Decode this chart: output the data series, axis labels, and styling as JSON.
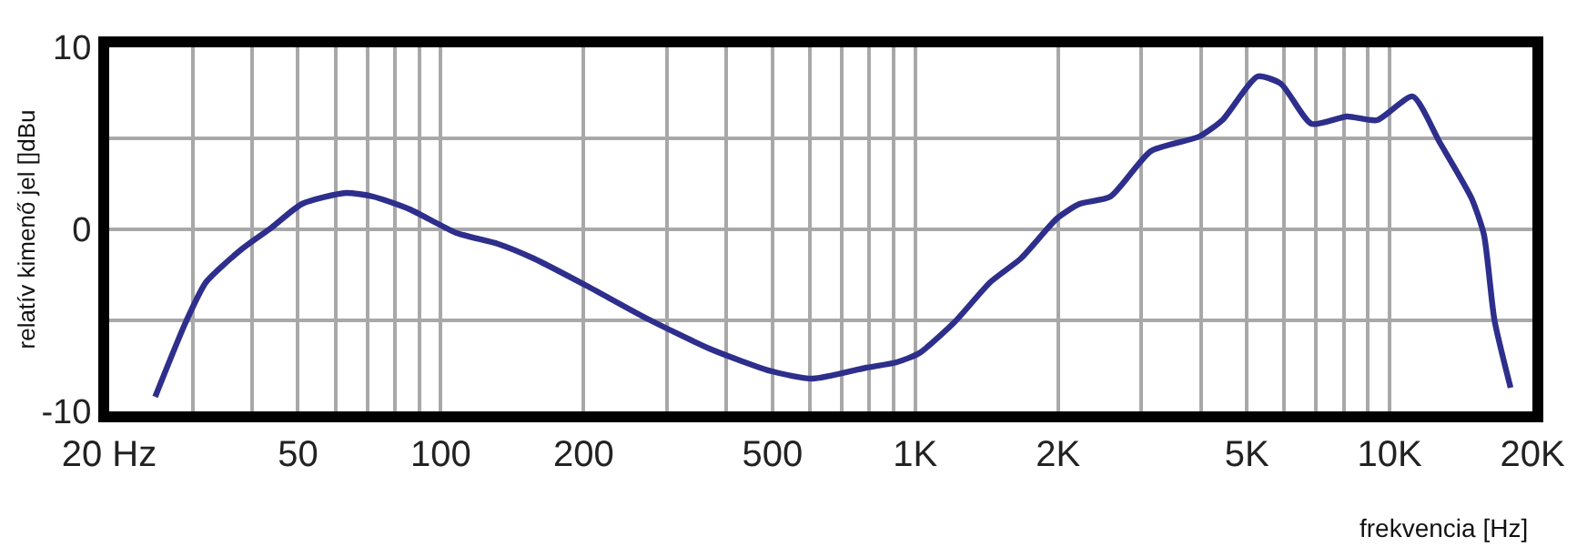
{
  "chart_data": {
    "type": "line",
    "xlabel": "frekvencia [Hz]",
    "ylabel": "relatív kimenő jel []dBu",
    "log": "x",
    "grid": true,
    "marker": "none",
    "line_style": "solid",
    "xlim": [
      20,
      20000
    ],
    "ylim": [
      -10,
      10
    ],
    "xticks": [
      {
        "value": 20,
        "label": "20 Hz"
      },
      {
        "value": 30,
        "label": null
      },
      {
        "value": 40,
        "label": null
      },
      50,
      {
        "value": 60,
        "label": null
      },
      {
        "value": 70,
        "label": null
      },
      {
        "value": 80,
        "label": null
      },
      {
        "value": 90,
        "label": null
      },
      100,
      200,
      {
        "value": 300,
        "label": null
      },
      {
        "value": 400,
        "label": null
      },
      500,
      {
        "value": 600,
        "label": null
      },
      {
        "value": 700,
        "label": null
      },
      {
        "value": 800,
        "label": null
      },
      {
        "value": 900,
        "label": null
      },
      {
        "value": 1000,
        "label": "1K"
      },
      {
        "value": 2000,
        "label": "2K"
      },
      {
        "value": 3000,
        "label": null
      },
      {
        "value": 4000,
        "label": null
      },
      {
        "value": 5000,
        "label": "5K"
      },
      {
        "value": 6000,
        "label": null
      },
      {
        "value": 7000,
        "label": null
      },
      {
        "value": 8000,
        "label": null
      },
      {
        "value": 9000,
        "label": null
      },
      {
        "value": 10000,
        "label": "10K"
      },
      {
        "value": 20000,
        "label": "20K"
      }
    ],
    "yticks": [
      -10,
      {
        "value": -5,
        "label": null
      },
      0,
      {
        "value": 5,
        "label": null
      },
      10
    ],
    "series": [
      {
        "color": "#2e2e8c",
        "x": [
          25,
          29,
          32,
          38,
          44,
          51,
          63,
          72,
          86,
          108,
          132,
          157,
          203,
          272,
          372,
          499,
          608,
          788,
          914,
          1020,
          1210,
          1440,
          1670,
          1990,
          2220,
          2580,
          3140,
          3970,
          4440,
          5270,
          5900,
          6840,
          8130,
          9410,
          11190,
          12740,
          14890,
          15810,
          16640,
          17990
        ],
        "values": [
          -9.2,
          -5.1,
          -2.9,
          -1.1,
          0.1,
          1.4,
          2.0,
          1.8,
          1.1,
          -0.2,
          -0.8,
          -1.6,
          -3.1,
          -4.9,
          -6.6,
          -7.8,
          -8.2,
          -7.6,
          -7.3,
          -6.8,
          -5.1,
          -2.9,
          -1.6,
          0.6,
          1.4,
          1.8,
          4.3,
          5.1,
          6.0,
          8.4,
          8.0,
          5.8,
          6.2,
          6.0,
          7.3,
          4.8,
          1.7,
          -0.3,
          -5.0,
          -8.7
        ]
      }
    ]
  }
}
